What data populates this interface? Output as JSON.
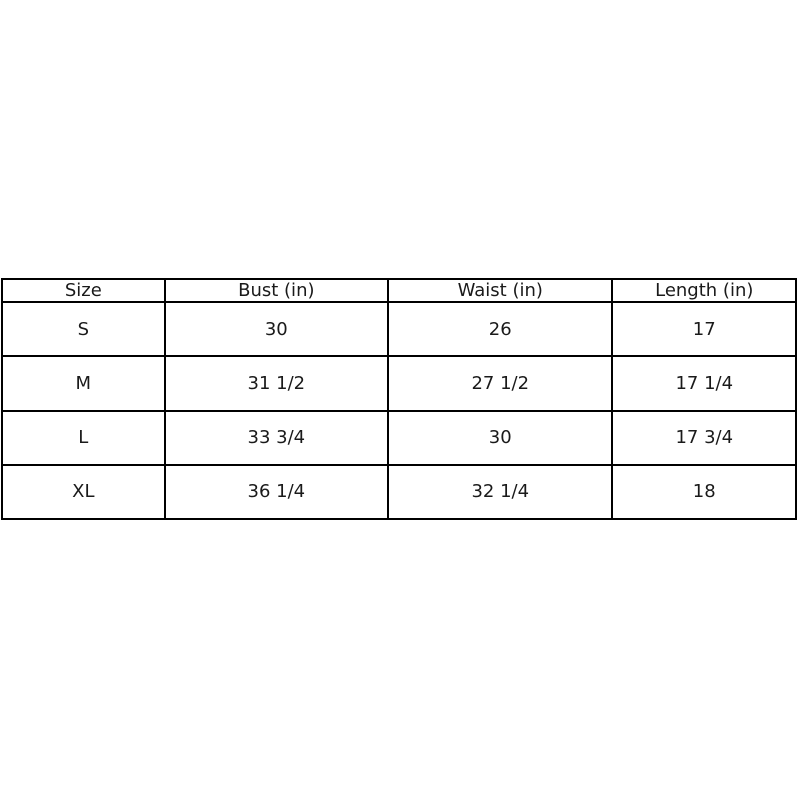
{
  "chart_data": {
    "type": "table",
    "title": "",
    "columns": [
      "Size",
      "Bust (in)",
      "Waist (in)",
      "Length (in)"
    ],
    "rows": [
      [
        "S",
        "30",
        "26",
        "17"
      ],
      [
        "M",
        "31 1/2",
        "27 1/2",
        "17 1/4"
      ],
      [
        "L",
        "33 3/4",
        "30",
        "17 3/4"
      ],
      [
        "XL",
        "36 1/4",
        "32 1/4",
        "18"
      ]
    ],
    "layout": {
      "grid": "on",
      "border_color": "#000000",
      "background": "#ffffff",
      "text_color": "#1a1a1a"
    }
  }
}
